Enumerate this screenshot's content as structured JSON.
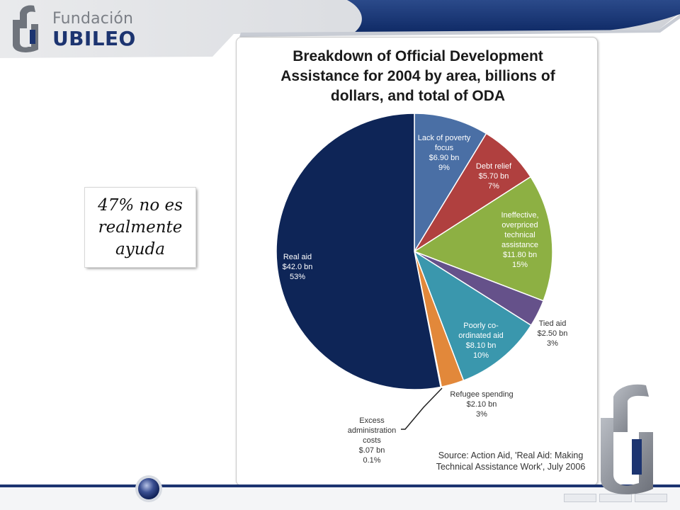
{
  "brand": {
    "name_top": "Fundación",
    "name_bottom": "UBILEO",
    "logo_icon": "fundacion-jubileo-logo-icon",
    "accent_color": "#1c3470"
  },
  "callout": {
    "text": "47%  no es realmente ayuda"
  },
  "chart": {
    "title_lines": [
      "Breakdown of Official Development",
      "Assistance for 2004 by area, billions of",
      "dollars, and total of ODA"
    ],
    "source_lines": [
      "Source: Action Aid, 'Real Aid: Making",
      "Technical Assistance Work', July 2006"
    ]
  },
  "chart_data": {
    "type": "pie",
    "title": "Breakdown of Official Development Assistance for 2004 by area, billions of dollars, and total of ODA",
    "units": "billions of dollars",
    "slices": [
      {
        "label": "Lack of poverty focus",
        "value_text": "$6.90 bn",
        "value": 6.9,
        "percent_text": "9%",
        "color": "#4a6fa5"
      },
      {
        "label": "Debt relief",
        "value_text": "$5.70 bn",
        "value": 5.7,
        "percent_text": "7%",
        "color": "#b0403f"
      },
      {
        "label": "Ineffective, overpriced technical assistance",
        "value_text": "$11.80 bn",
        "value": 11.8,
        "percent_text": "15%",
        "color": "#8db043"
      },
      {
        "label": "Tied aid",
        "value_text": "$2.50 bn",
        "value": 2.5,
        "percent_text": "3%",
        "color": "#65518a"
      },
      {
        "label": "Poorly co-ordinated aid",
        "value_text": "$8.10 bn",
        "value": 8.1,
        "percent_text": "10%",
        "color": "#3a97ad"
      },
      {
        "label": "Refugee spending",
        "value_text": "$2.10 bn",
        "value": 2.1,
        "percent_text": "3%",
        "color": "#e2883a"
      },
      {
        "label": "Excess administration costs",
        "value_text": "$.07 bn",
        "value": 0.07,
        "percent_text": "0.1%",
        "color": "#2a3f66"
      },
      {
        "label": "Real aid",
        "value_text": "$42.0 bn",
        "value": 42.0,
        "percent_text": "53%",
        "color": "#0e2557"
      }
    ],
    "start_angle_deg": 0,
    "direction": "clockwise",
    "legend": "none"
  }
}
